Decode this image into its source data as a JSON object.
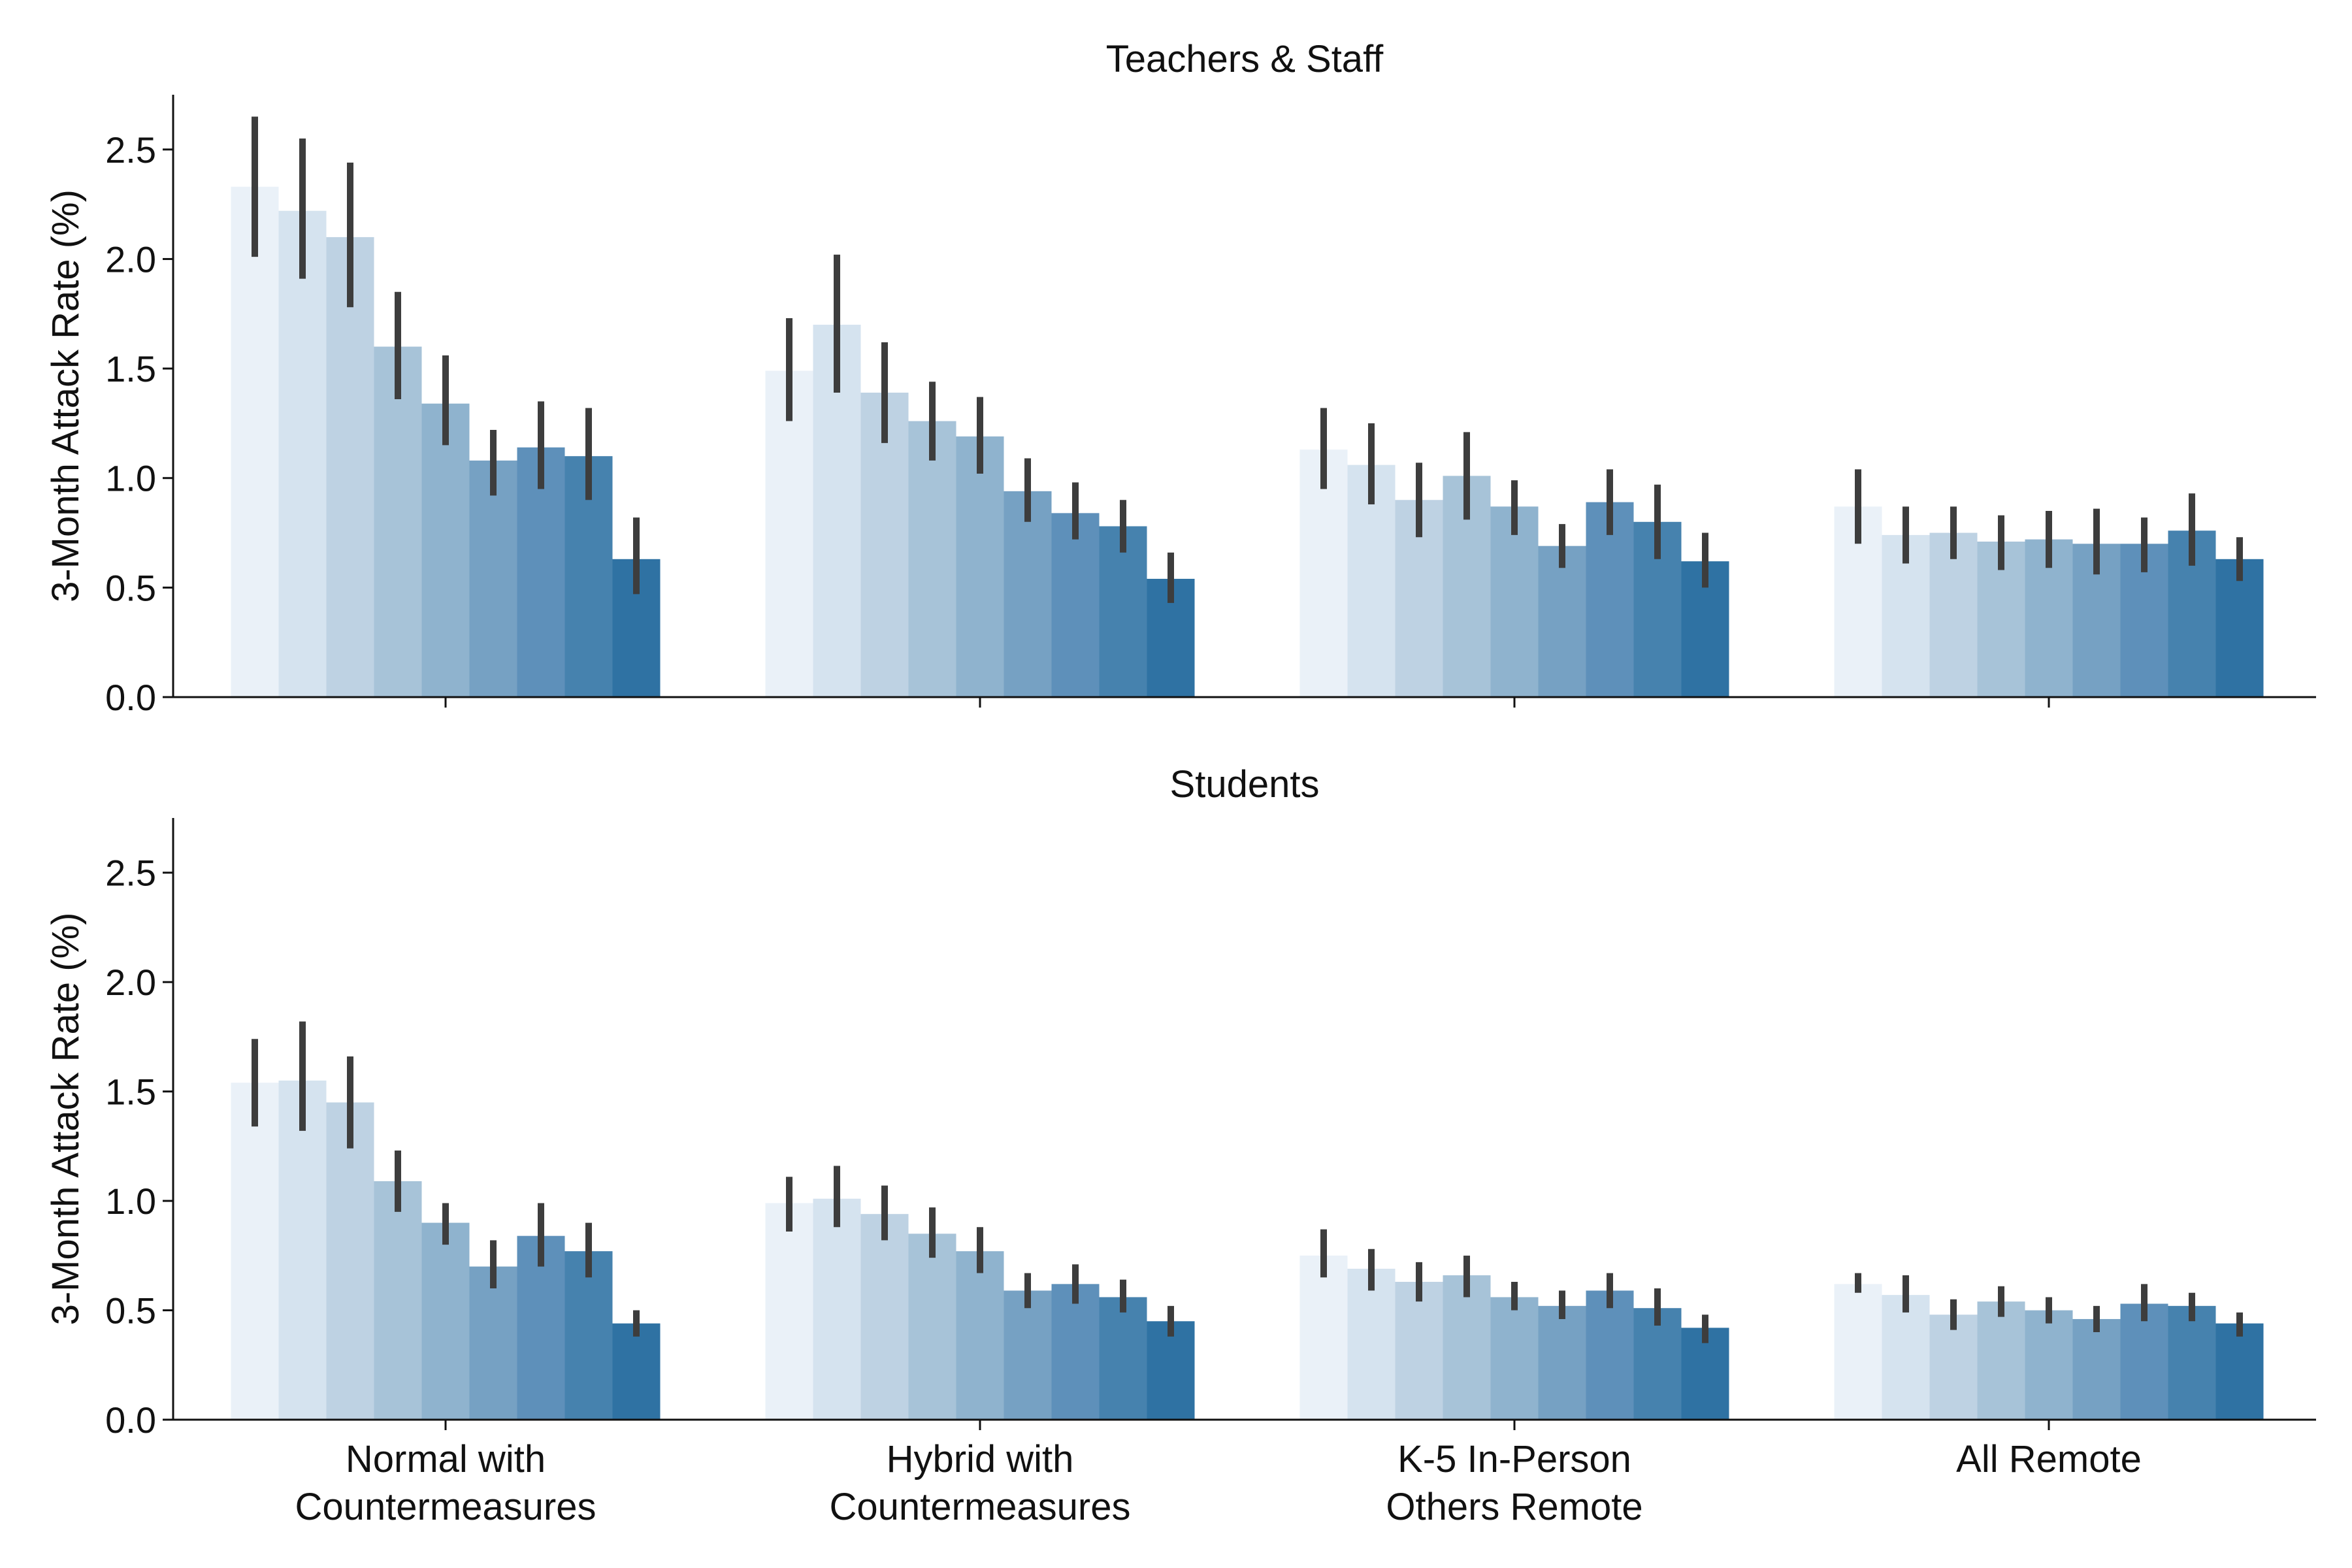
{
  "chart_data": [
    {
      "type": "bar",
      "title": "Teachers & Staff",
      "ylabel": "3-Month Attack Rate (%)",
      "xlabel": "",
      "ylim": [
        0,
        2.75
      ],
      "yticks": [
        "0.0",
        "0.5",
        "1.0",
        "1.5",
        "2.0",
        "2.5"
      ],
      "categories": [
        "Normal with\nCountermeasures",
        "Hybrid with\nCountermeasures",
        "K-5 In-Person\nOthers Remote",
        "All Remote"
      ],
      "grid": false,
      "legend": "none",
      "error_bars": true,
      "series": [
        {
          "values": [
            2.33,
            1.49,
            1.13,
            0.87
          ],
          "err_low": [
            2.01,
            1.26,
            0.95,
            0.7
          ],
          "err_high": [
            2.65,
            1.73,
            1.32,
            1.04
          ]
        },
        {
          "values": [
            2.22,
            1.7,
            1.06,
            0.74
          ],
          "err_low": [
            1.91,
            1.39,
            0.88,
            0.61
          ],
          "err_high": [
            2.55,
            2.02,
            1.25,
            0.87
          ]
        },
        {
          "values": [
            2.1,
            1.39,
            0.9,
            0.75
          ],
          "err_low": [
            1.78,
            1.16,
            0.73,
            0.63
          ],
          "err_high": [
            2.44,
            1.62,
            1.07,
            0.87
          ]
        },
        {
          "values": [
            1.6,
            1.26,
            1.01,
            0.71
          ],
          "err_low": [
            1.36,
            1.08,
            0.81,
            0.58
          ],
          "err_high": [
            1.85,
            1.44,
            1.21,
            0.83
          ]
        },
        {
          "values": [
            1.34,
            1.19,
            0.87,
            0.72
          ],
          "err_low": [
            1.15,
            1.02,
            0.74,
            0.59
          ],
          "err_high": [
            1.56,
            1.37,
            0.99,
            0.85
          ]
        },
        {
          "values": [
            1.08,
            0.94,
            0.69,
            0.7
          ],
          "err_low": [
            0.92,
            0.8,
            0.59,
            0.56
          ],
          "err_high": [
            1.22,
            1.09,
            0.79,
            0.86
          ]
        },
        {
          "values": [
            1.14,
            0.84,
            0.89,
            0.7
          ],
          "err_low": [
            0.95,
            0.72,
            0.74,
            0.57
          ],
          "err_high": [
            1.35,
            0.98,
            1.04,
            0.82
          ]
        },
        {
          "values": [
            1.1,
            0.78,
            0.8,
            0.76
          ],
          "err_low": [
            0.9,
            0.66,
            0.63,
            0.6
          ],
          "err_high": [
            1.32,
            0.9,
            0.97,
            0.93
          ]
        },
        {
          "values": [
            0.63,
            0.54,
            0.62,
            0.63
          ],
          "err_low": [
            0.47,
            0.43,
            0.5,
            0.53
          ],
          "err_high": [
            0.82,
            0.66,
            0.75,
            0.73
          ]
        }
      ]
    },
    {
      "type": "bar",
      "title": "Students",
      "ylabel": "3-Month Attack Rate (%)",
      "xlabel": "",
      "ylim": [
        0,
        2.75
      ],
      "yticks": [
        "0.0",
        "0.5",
        "1.0",
        "1.5",
        "2.0",
        "2.5"
      ],
      "categories": [
        "Normal with\nCountermeasures",
        "Hybrid with\nCountermeasures",
        "K-5 In-Person\nOthers Remote",
        "All Remote"
      ],
      "grid": false,
      "legend": "none",
      "error_bars": true,
      "series": [
        {
          "values": [
            1.54,
            0.99,
            0.75,
            0.62
          ],
          "err_low": [
            1.34,
            0.86,
            0.65,
            0.58
          ],
          "err_high": [
            1.74,
            1.11,
            0.87,
            0.67
          ]
        },
        {
          "values": [
            1.55,
            1.01,
            0.69,
            0.57
          ],
          "err_low": [
            1.32,
            0.88,
            0.59,
            0.49
          ],
          "err_high": [
            1.82,
            1.16,
            0.78,
            0.66
          ]
        },
        {
          "values": [
            1.45,
            0.94,
            0.63,
            0.48
          ],
          "err_low": [
            1.24,
            0.82,
            0.54,
            0.41
          ],
          "err_high": [
            1.66,
            1.07,
            0.72,
            0.55
          ]
        },
        {
          "values": [
            1.09,
            0.85,
            0.66,
            0.54
          ],
          "err_low": [
            0.95,
            0.74,
            0.56,
            0.47
          ],
          "err_high": [
            1.23,
            0.97,
            0.75,
            0.61
          ]
        },
        {
          "values": [
            0.9,
            0.77,
            0.56,
            0.5
          ],
          "err_low": [
            0.8,
            0.67,
            0.5,
            0.44
          ],
          "err_high": [
            0.99,
            0.88,
            0.63,
            0.56
          ]
        },
        {
          "values": [
            0.7,
            0.59,
            0.52,
            0.46
          ],
          "err_low": [
            0.6,
            0.51,
            0.46,
            0.4
          ],
          "err_high": [
            0.82,
            0.67,
            0.59,
            0.52
          ]
        },
        {
          "values": [
            0.84,
            0.62,
            0.59,
            0.53
          ],
          "err_low": [
            0.7,
            0.53,
            0.51,
            0.45
          ],
          "err_high": [
            0.99,
            0.71,
            0.67,
            0.62
          ]
        },
        {
          "values": [
            0.77,
            0.56,
            0.51,
            0.52
          ],
          "err_low": [
            0.65,
            0.49,
            0.43,
            0.45
          ],
          "err_high": [
            0.9,
            0.64,
            0.6,
            0.58
          ]
        },
        {
          "values": [
            0.44,
            0.45,
            0.42,
            0.44
          ],
          "err_low": [
            0.38,
            0.38,
            0.35,
            0.38
          ],
          "err_high": [
            0.5,
            0.52,
            0.48,
            0.49
          ]
        }
      ]
    }
  ],
  "palette": [
    "#eaf1f8",
    "#d5e3ef",
    "#bed2e3",
    "#a7c3d8",
    "#8fb3ce",
    "#76a1c3",
    "#5e90ba",
    "#4682ae",
    "#2f72a3"
  ],
  "error_bar_color": "#3d3d3d",
  "axis_color": "#111111"
}
